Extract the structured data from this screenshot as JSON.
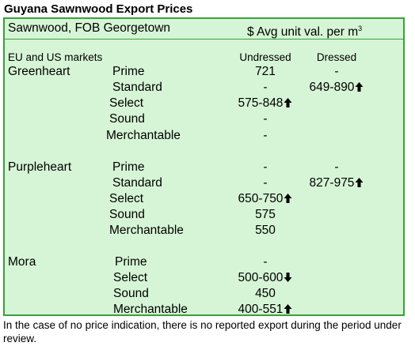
{
  "title": "Guyana Sawnwood Export Prices",
  "header": {
    "left": "Sawnwood, FOB Georgetown",
    "right": "$ Avg unit val. per m",
    "right_sup": "3"
  },
  "section_label": "EU and US markets",
  "col_undressed": "Undressed",
  "col_dressed": "Dressed",
  "species": [
    "Greenheart",
    "Purpleheart",
    "Mora"
  ],
  "rows": [
    {
      "grade": "Prime",
      "und": "721",
      "dre": "-"
    },
    {
      "grade": "Standard",
      "und": "-",
      "dre": "649-890"
    },
    {
      "grade": "Select",
      "und": "575-848",
      "dre": ""
    },
    {
      "grade": "Sound",
      "und": "-",
      "dre": ""
    },
    {
      "grade": "Merchantable",
      "und": "-",
      "dre": ""
    },
    {
      "grade": "Prime",
      "und": "-",
      "dre": "-"
    },
    {
      "grade": "Standard",
      "und": "-",
      "dre": "827-975"
    },
    {
      "grade": "Select",
      "und": "650-750",
      "dre": ""
    },
    {
      "grade": "Sound",
      "und": "575",
      "dre": ""
    },
    {
      "grade": "Merchantable",
      "und": "550",
      "dre": ""
    },
    {
      "grade": "Prime",
      "und": "-",
      "dre": ""
    },
    {
      "grade": "Select",
      "und": "500-600",
      "dre": ""
    },
    {
      "grade": "Sound",
      "und": "450",
      "dre": ""
    },
    {
      "grade": "Merchantable",
      "und": "400-551",
      "dre": ""
    }
  ],
  "arrows": [
    "up-arrow-icon",
    "down-arrow-icon"
  ],
  "footnote": "In the case of no price indication, there is no reported export during the period under review."
}
